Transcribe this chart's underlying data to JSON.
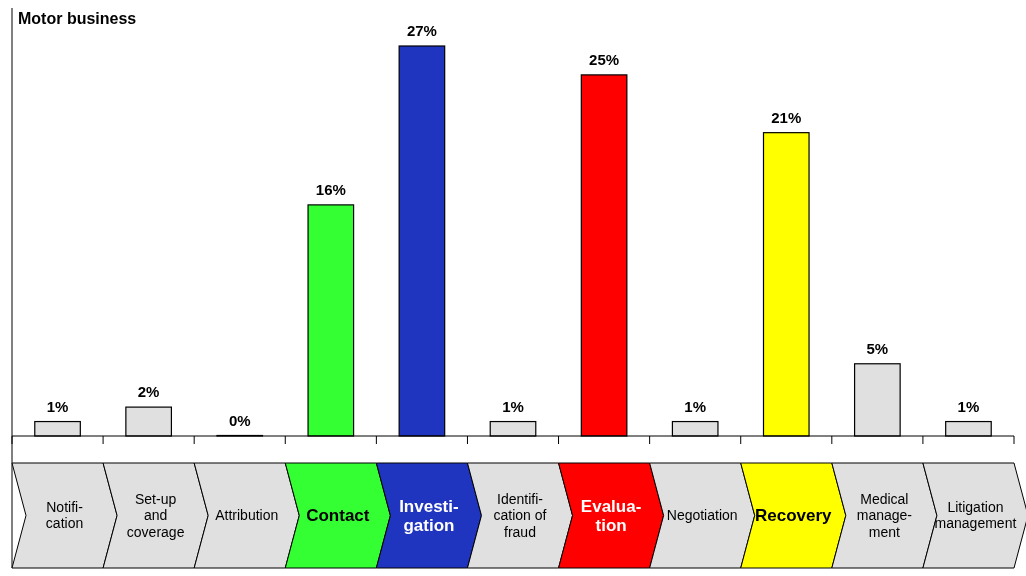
{
  "chart_data": {
    "type": "bar",
    "title": "Motor business",
    "categories": [
      "Notifi-\ncation",
      "Set-up\nand\ncoverage",
      "Attribution",
      "Contact",
      "Investi-\ngation",
      "Identifi-\ncation of\nfraud",
      "Evalua-\ntion",
      "Negotiation",
      "Recovery",
      "Medical\nmanage-\nment",
      "Litigation\nmanagement"
    ],
    "values": [
      1,
      2,
      0,
      16,
      27,
      1,
      25,
      1,
      21,
      5,
      1
    ],
    "colors": [
      "#e0e0e0",
      "#e0e0e0",
      "#e0e0e0",
      "#33ff33",
      "#1f35c0",
      "#e0e0e0",
      "#ff0000",
      "#e0e0e0",
      "#ffff00",
      "#e0e0e0",
      "#e0e0e0"
    ],
    "value_labels": [
      "1%",
      "2%",
      "0%",
      "16%",
      "27%",
      "1%",
      "25%",
      "1%",
      "21%",
      "5%",
      "1%"
    ]
  }
}
